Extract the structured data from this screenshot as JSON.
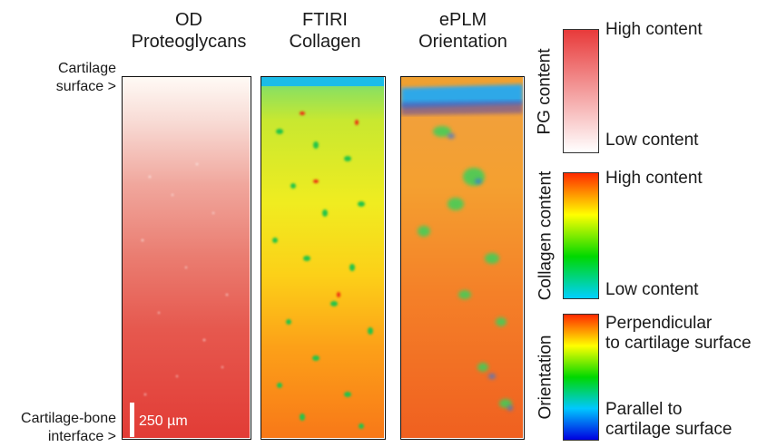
{
  "panels": {
    "od": {
      "title_line1": "OD",
      "title_line2": "Proteoglycans"
    },
    "ftiri": {
      "title_line1": "FTIRI",
      "title_line2": "Collagen"
    },
    "eplm": {
      "title_line1": "ePLM",
      "title_line2": "Orientation"
    }
  },
  "side_labels": {
    "top_line1": "Cartilage",
    "top_line2": "surface >",
    "bottom_line1": "Cartilage-bone",
    "bottom_line2": "interface >"
  },
  "scale_bar": {
    "label": "250 µm"
  },
  "legends": {
    "pg": {
      "axis": "PG content",
      "high": "High content",
      "low": "Low content",
      "colors": [
        "#e83a3a",
        "#ffffff"
      ]
    },
    "collagen": {
      "axis": "Collagen content",
      "high": "High content",
      "low": "Low content",
      "colors": [
        "#ff2a00",
        "#ffff00",
        "#00d800",
        "#00d0ff"
      ]
    },
    "orientation": {
      "axis": "Orientation",
      "high_line1": "Perpendicular",
      "high_line2": "to cartilage surface",
      "low_line1": "Parallel to",
      "low_line2": "cartilage surface",
      "colors": [
        "#ff2a00",
        "#ffff00",
        "#00d800",
        "#00c8ff",
        "#0000e0"
      ]
    }
  }
}
